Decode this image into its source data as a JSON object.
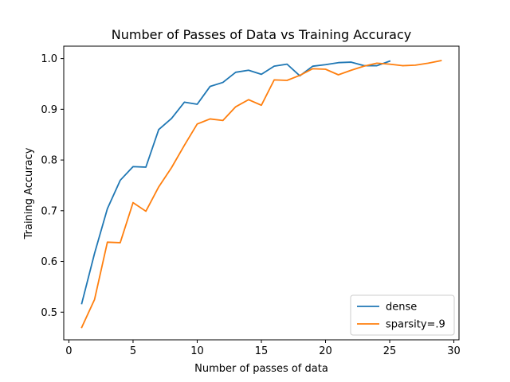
{
  "chart_data": {
    "type": "line",
    "title": "Number of Passes of Data vs Training Accuracy",
    "xlabel": "Number of passes of data",
    "ylabel": "Training Accuracy",
    "xlim": [
      -0.4,
      30.4
    ],
    "ylim": [
      0.4455,
      1.0245
    ],
    "xticks": [
      0,
      5,
      10,
      15,
      20,
      25,
      30
    ],
    "yticks": [
      0.5,
      0.6,
      0.7,
      0.8,
      0.9,
      1.0
    ],
    "ytick_labels": [
      "0.5",
      "0.6",
      "0.7",
      "0.8",
      "0.9",
      "1.0"
    ],
    "grid": false,
    "legend_position": "lower-right",
    "series": [
      {
        "name": "dense",
        "color": "#1f77b4",
        "x": [
          1,
          2,
          3,
          4,
          5,
          6,
          7,
          8,
          9,
          10,
          11,
          12,
          13,
          14,
          15,
          16,
          17,
          18,
          19,
          20,
          21,
          22,
          23,
          24,
          25
        ],
        "y": [
          0.517,
          0.616,
          0.704,
          0.76,
          0.787,
          0.786,
          0.86,
          0.882,
          0.914,
          0.91,
          0.945,
          0.953,
          0.973,
          0.977,
          0.969,
          0.985,
          0.989,
          0.966,
          0.985,
          0.988,
          0.992,
          0.993,
          0.986,
          0.986,
          0.995
        ]
      },
      {
        "name": "sparsity=.9",
        "color": "#ff7f0e",
        "x": [
          1,
          2,
          3,
          4,
          5,
          6,
          7,
          8,
          9,
          10,
          11,
          12,
          13,
          14,
          15,
          16,
          17,
          18,
          19,
          20,
          21,
          22,
          23,
          24,
          25,
          26,
          27,
          28,
          29
        ],
        "y": [
          0.47,
          0.525,
          0.638,
          0.637,
          0.716,
          0.699,
          0.747,
          0.785,
          0.829,
          0.871,
          0.881,
          0.878,
          0.905,
          0.919,
          0.908,
          0.958,
          0.957,
          0.967,
          0.98,
          0.979,
          0.968,
          0.977,
          0.985,
          0.991,
          0.989,
          0.986,
          0.987,
          0.991,
          0.996
        ]
      }
    ]
  }
}
